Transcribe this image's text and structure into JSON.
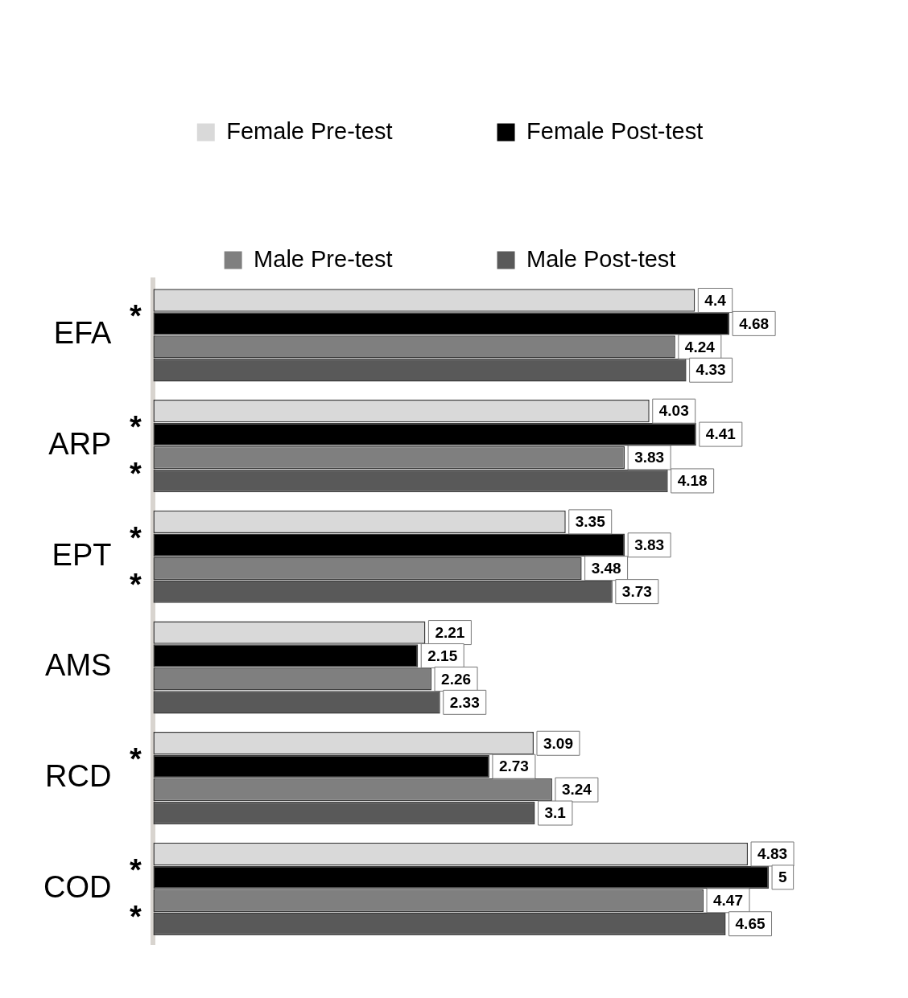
{
  "chart_data": {
    "type": "bar",
    "orientation": "horizontal",
    "categories": [
      "EFA",
      "ARP",
      "EPT",
      "AMS",
      "RCD",
      "COD"
    ],
    "series": [
      {
        "name": "Female Pre-test",
        "color": "#d9d9d9",
        "values": [
          4.4,
          4.03,
          3.35,
          2.21,
          3.09,
          4.83
        ]
      },
      {
        "name": "Female Post-test",
        "color": "#000000",
        "values": [
          4.68,
          4.41,
          3.83,
          2.15,
          2.73,
          5
        ]
      },
      {
        "name": "Male Pre-test",
        "color": "#7f7f7f",
        "values": [
          4.24,
          3.83,
          3.48,
          2.26,
          3.24,
          4.47
        ]
      },
      {
        "name": "Male Post-test",
        "color": "#595959",
        "values": [
          4.33,
          4.18,
          3.73,
          2.33,
          3.1,
          4.65
        ]
      }
    ],
    "data_labels": true,
    "legend": "top",
    "annotations": [
      "*",
      "*",
      "*",
      "*",
      "*",
      "*",
      "*",
      "*"
    ]
  }
}
